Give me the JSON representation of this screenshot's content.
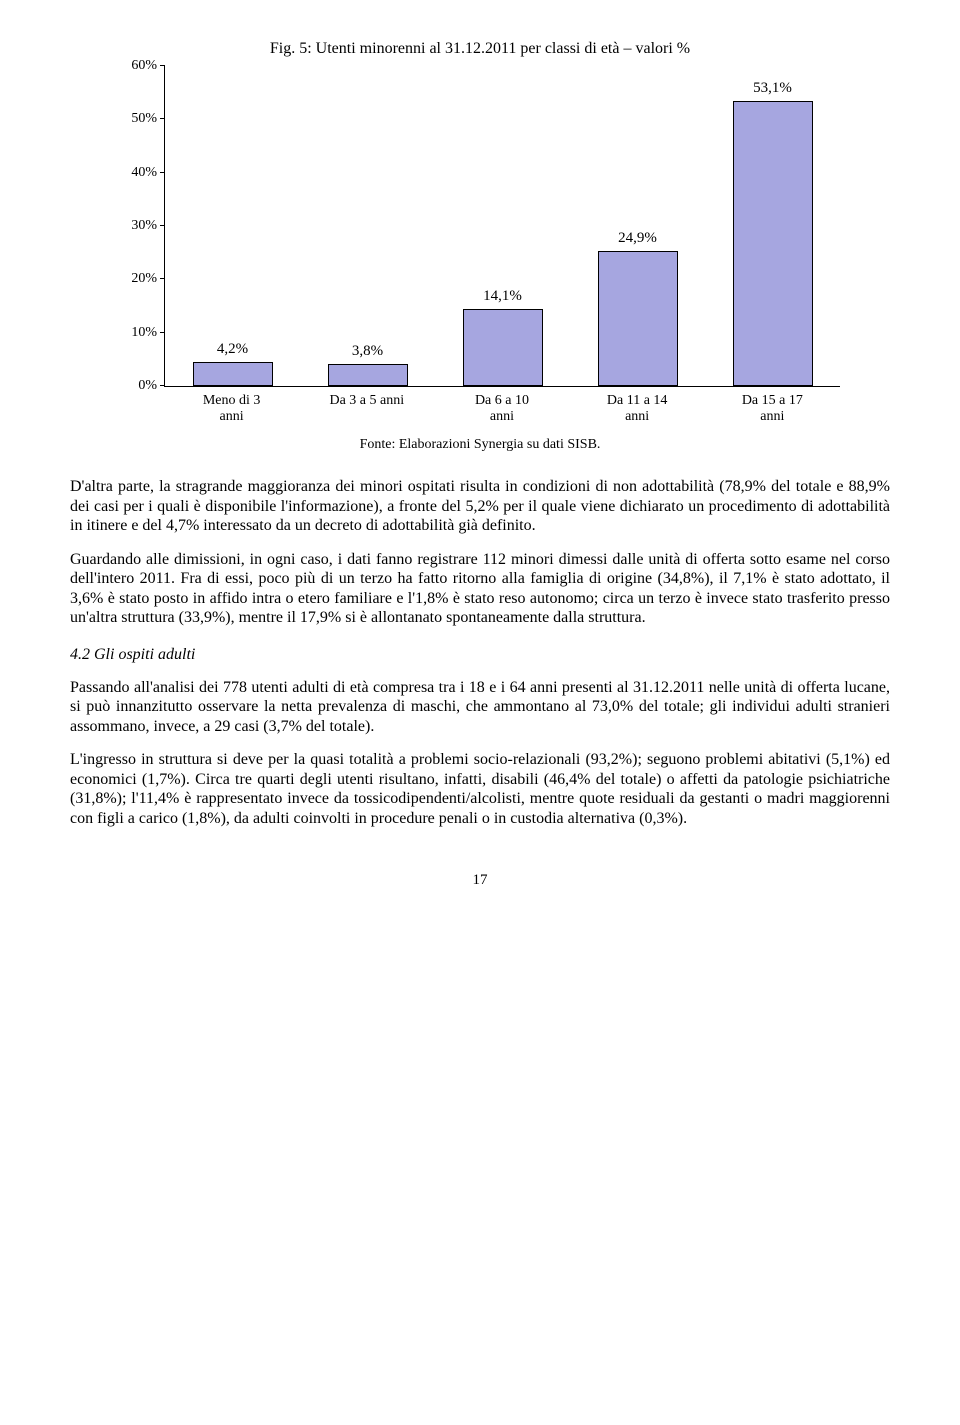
{
  "chart": {
    "type": "bar",
    "title": "Fig. 5: Utenti minorenni al 31.12.2011 per classi di età – valori %",
    "categories": [
      "Meno di 3 anni",
      "Da 3 a 5 anni",
      "Da 6 a 10 anni",
      "Da 11 a 14 anni",
      "Da 15 a 17 anni"
    ],
    "values": [
      4.2,
      3.8,
      14.1,
      24.9,
      53.1
    ],
    "value_labels": [
      "4,2%",
      "3,8%",
      "14,1%",
      "24,9%",
      "53,1%"
    ],
    "bar_color": "#a6a6e0",
    "bar_border": "#000000",
    "ylim": [
      0,
      60
    ],
    "ytick_step": 10,
    "ytick_labels": [
      "0%",
      "10%",
      "20%",
      "30%",
      "40%",
      "50%",
      "60%"
    ],
    "source": "Fonte: Elaborazioni Synergia su dati SISB."
  },
  "paragraphs": {
    "p1": "D'altra parte, la stragrande maggioranza dei minori ospitati risulta in condizioni di non adottabilità (78,9% del totale e 88,9% dei casi per i quali è disponibile l'informazione), a fronte del 5,2% per il quale viene dichiarato un procedimento di adottabilità in itinere e del 4,7% interessato da un decreto di adottabilità già definito.",
    "p2": "Guardando alle dimissioni, in ogni caso, i dati fanno registrare 112 minori dimessi dalle unità di offerta sotto esame nel corso dell'intero 2011. Fra di essi, poco più di un terzo ha fatto ritorno alla famiglia di origine (34,8%), il 7,1% è stato adottato, il 3,6% è stato posto in affido intra o etero familiare e l'1,8% è stato reso autonomo; circa un terzo è invece stato trasferito presso un'altra struttura (33,9%), mentre il 17,9% si è allontanato spontaneamente dalla struttura.",
    "section_title": "4.2 Gli ospiti adulti",
    "p3": "Passando all'analisi dei 778 utenti adulti di età compresa tra i 18 e i 64 anni presenti al 31.12.2011 nelle unità di offerta lucane, si può innanzitutto osservare la netta prevalenza di maschi, che ammontano al 73,0% del totale; gli individui adulti stranieri assommano, invece, a 29 casi (3,7% del totale).",
    "p4": "L'ingresso in struttura si deve per la quasi totalità a problemi socio-relazionali (93,2%); seguono problemi abitativi (5,1%) ed economici (1,7%). Circa tre quarti degli utenti risultano, infatti, disabili (46,4% del totale) o affetti da patologie psichiatriche (31,8%); l'11,4% è rappresentato invece da tossicodipendenti/alcolisti, mentre quote residuali da gestanti o madri maggiorenni con figli a carico (1,8%), da adulti coinvolti in procedure penali o in custodia alternativa (0,3%)."
  },
  "page_number": "17"
}
